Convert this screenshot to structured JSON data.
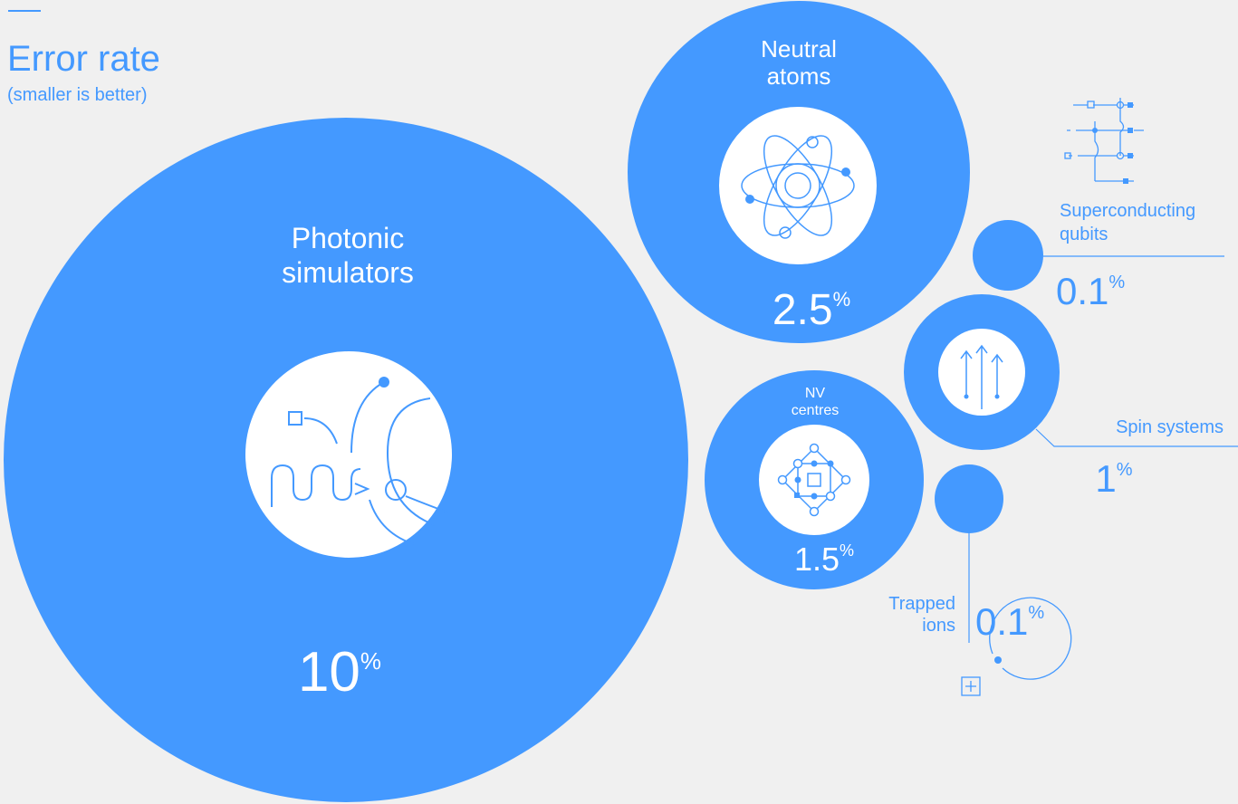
{
  "header": {
    "title": "Error rate",
    "subtitle": "(smaller is better)"
  },
  "colors": {
    "accent": "#4499ff",
    "background": "#f0f0f0",
    "icon_fill": "#ffffff"
  },
  "chart_data": {
    "type": "bubble",
    "title": "Error rate",
    "subtitle": "(smaller is better)",
    "unit": "%",
    "series": [
      {
        "name": "Photonic simulators",
        "label_lines": [
          "Photonic",
          "simulators"
        ],
        "value": 10,
        "value_text": "10",
        "icon": "photonic-waveguide-icon"
      },
      {
        "name": "Neutral atoms",
        "label_lines": [
          "Neutral",
          "atoms"
        ],
        "value": 2.5,
        "value_text": "2.5",
        "icon": "atom-icon"
      },
      {
        "name": "NV centres",
        "label_lines": [
          "NV",
          "centres"
        ],
        "value": 1.5,
        "value_text": "1.5",
        "icon": "diamond-lattice-icon"
      },
      {
        "name": "Spin systems",
        "label_lines": [
          "Spin systems"
        ],
        "value": 1,
        "value_text": "1",
        "icon": "spin-arrows-icon"
      },
      {
        "name": "Superconducting qubits",
        "label_lines": [
          "Superconducting",
          "qubits"
        ],
        "value": 0.1,
        "value_text": "0.1",
        "icon": "circuit-icon"
      },
      {
        "name": "Trapped ions",
        "label_lines": [
          "Trapped",
          "ions"
        ],
        "value": 0.1,
        "value_text": "0.1",
        "icon": "ion-trap-icon"
      }
    ]
  }
}
